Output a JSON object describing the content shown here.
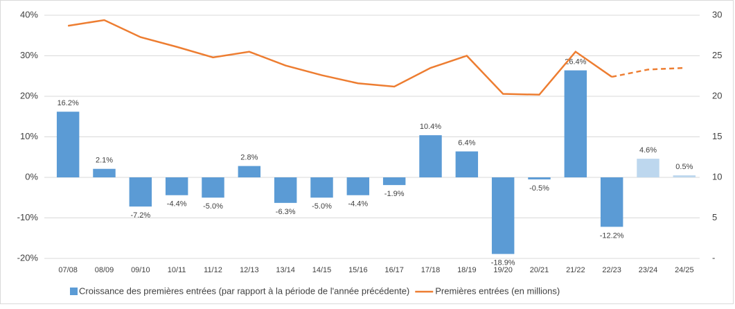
{
  "chart_data": {
    "type": "bar_line",
    "categories": [
      "07/08",
      "08/09",
      "09/10",
      "10/11",
      "11/12",
      "12/13",
      "13/14",
      "14/15",
      "15/16",
      "16/17",
      "17/18",
      "18/19",
      "19/20",
      "20/21",
      "21/22",
      "22/23",
      "23/24",
      "24/25"
    ],
    "series": [
      {
        "name": "Croissance des premières entrées (par rapport à la période de l'année précédente)",
        "color": "#5b9bd5",
        "projected_color": "#bdd7ee",
        "values": [
          16.2,
          2.1,
          -7.2,
          -4.4,
          -5.0,
          2.8,
          -6.3,
          -5.0,
          -4.4,
          -1.9,
          10.4,
          6.4,
          -18.9,
          -0.5,
          26.4,
          -12.2,
          4.6,
          0.5
        ],
        "value_labels": [
          "16.2%",
          "2.1%",
          "-7.2%",
          "-4.4%",
          "-5.0%",
          "2.8%",
          "-6.3%",
          "-5.0%",
          "-4.4%",
          "-1.9%",
          "10.4%",
          "6.4%",
          "-18.9%",
          "-0.5%",
          "26.4%",
          "-12.2%",
          "4.6%",
          "0.5%"
        ]
      },
      {
        "name": "Premières entrées (en millions)",
        "color": "#ed7d31",
        "axis": "y2",
        "values": [
          28.7,
          29.4,
          27.3,
          26.1,
          24.8,
          25.5,
          23.8,
          22.6,
          21.6,
          21.2,
          23.5,
          25.0,
          20.3,
          20.2,
          25.5,
          22.4,
          23.3,
          23.5
        ]
      }
    ],
    "projected_from": 16,
    "ylim": [
      -20,
      40
    ],
    "yticks": [
      {
        "value": -20,
        "label": "-20%"
      },
      {
        "value": -10,
        "label": "-10%"
      },
      {
        "value": 0,
        "label": "0%"
      },
      {
        "value": 10,
        "label": "10%"
      },
      {
        "value": 20,
        "label": "20%"
      },
      {
        "value": 30,
        "label": "30%"
      },
      {
        "value": 40,
        "label": "40%"
      }
    ],
    "y2lim": [
      0,
      30
    ],
    "y2ticks": [
      {
        "value": 0,
        "label": "-"
      },
      5,
      10,
      15,
      20,
      25,
      30
    ],
    "grid": true,
    "legend": "bottom"
  }
}
